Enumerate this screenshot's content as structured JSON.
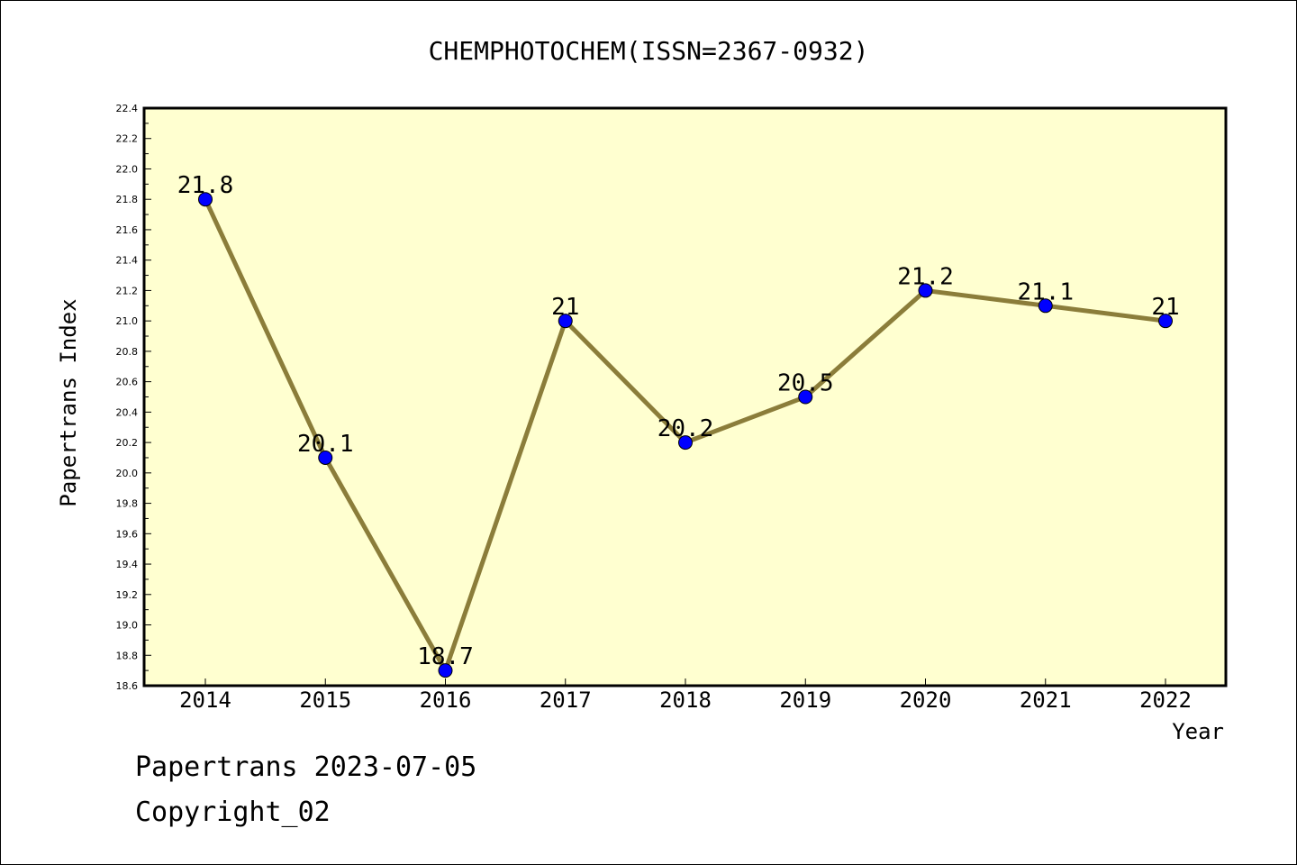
{
  "chart_data": {
    "type": "line",
    "title": "CHEMPHOTOCHEM(ISSN=2367-0932)",
    "xlabel": "Year",
    "ylabel": "Papertrans Index",
    "categories": [
      "2014",
      "2015",
      "2016",
      "2017",
      "2018",
      "2019",
      "2020",
      "2021",
      "2022"
    ],
    "series": [
      {
        "values": [
          21.8,
          20.1,
          18.7,
          21.0,
          20.2,
          20.5,
          21.2,
          21.1,
          21.0
        ],
        "labels": [
          "21.8",
          "20.1",
          "18.7",
          "21",
          "20.2",
          "20.5",
          "21.2",
          "21.1",
          "21"
        ]
      }
    ],
    "ylim": [
      18.6,
      22.4
    ],
    "yticks": [
      "18.6",
      "18.8",
      "19.0",
      "19.2",
      "19.4",
      "19.6",
      "19.8",
      "20.0",
      "20.2",
      "20.4",
      "20.6",
      "20.8",
      "21.0",
      "21.2",
      "21.4",
      "21.6",
      "21.8",
      "22.0",
      "22.2",
      "22.4"
    ],
    "grid": false,
    "colors": {
      "line": "#8b7d3a",
      "marker": "#0000ff",
      "plot_bg": "#ffffd0"
    }
  },
  "footer": {
    "source": "Papertrans 2023-07-05",
    "copyright": "Copyright_02"
  }
}
